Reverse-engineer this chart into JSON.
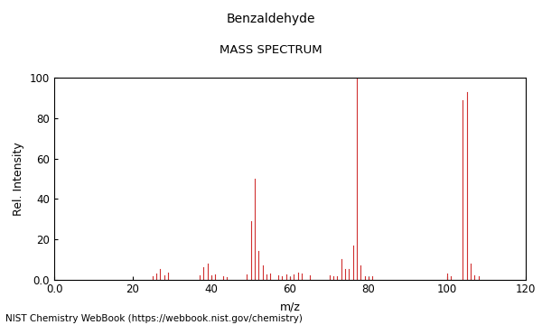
{
  "title_line1": "Benzaldehyde",
  "title_line2": "MASS SPECTRUM",
  "xlabel": "m/z",
  "ylabel": "Rel. Intensity",
  "xlim": [
    0.0,
    120
  ],
  "ylim": [
    0.0,
    100
  ],
  "xticks": [
    0.0,
    20,
    40,
    60,
    80,
    100,
    120
  ],
  "yticks": [
    0.0,
    20,
    40,
    60,
    80,
    100
  ],
  "background_color": "#ffffff",
  "line_color": "#d03030",
  "footer_text": "NIST Chemistry WebBook (https://webbook.nist.gov/chemistry)",
  "peaks": [
    [
      25,
      1.5
    ],
    [
      26,
      3.0
    ],
    [
      27,
      5.0
    ],
    [
      28,
      2.0
    ],
    [
      29,
      3.5
    ],
    [
      37,
      2.0
    ],
    [
      38,
      6.0
    ],
    [
      39,
      8.0
    ],
    [
      40,
      2.0
    ],
    [
      41,
      2.5
    ],
    [
      43,
      1.5
    ],
    [
      44,
      1.0
    ],
    [
      49,
      2.5
    ],
    [
      50,
      29.0
    ],
    [
      51,
      50.0
    ],
    [
      52,
      14.0
    ],
    [
      53,
      7.0
    ],
    [
      54,
      2.5
    ],
    [
      55,
      3.0
    ],
    [
      57,
      2.0
    ],
    [
      58,
      1.5
    ],
    [
      59,
      2.5
    ],
    [
      60,
      1.0
    ],
    [
      61,
      2.5
    ],
    [
      62,
      3.5
    ],
    [
      63,
      3.0
    ],
    [
      65,
      2.0
    ],
    [
      70,
      2.0
    ],
    [
      71,
      1.5
    ],
    [
      72,
      1.5
    ],
    [
      73,
      10.0
    ],
    [
      74,
      5.0
    ],
    [
      75,
      5.0
    ],
    [
      76,
      17.0
    ],
    [
      77,
      100.0
    ],
    [
      78,
      7.0
    ],
    [
      79,
      1.5
    ],
    [
      80,
      1.0
    ],
    [
      81,
      1.5
    ],
    [
      100,
      3.0
    ],
    [
      101,
      1.5
    ],
    [
      104,
      89.0
    ],
    [
      105,
      93.0
    ],
    [
      106,
      8.0
    ],
    [
      107,
      2.0
    ],
    [
      108,
      1.5
    ]
  ]
}
